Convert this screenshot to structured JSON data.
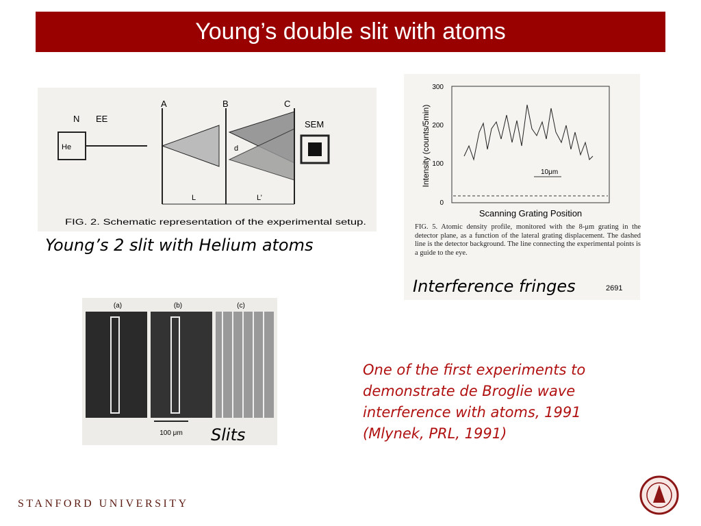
{
  "header": {
    "title": "Young’s double slit with atoms"
  },
  "setup_figure": {
    "labels": [
      "N",
      "EE",
      "A",
      "B",
      "C",
      "SEM",
      "He",
      "d",
      "L",
      "L’"
    ],
    "caption": "FIG. 2. Schematic representation of the experimental setup."
  },
  "setup_caption": "Young’s 2 slit with Helium atoms",
  "fringe_figure": {
    "y_label": "Intensity (counts/5min)",
    "y_ticks": [
      300,
      200,
      100,
      0
    ],
    "scale_label": "10μm",
    "x_label": "Scanning Grating Position",
    "caption": "FIG. 5. Atomic density profile, monitored with the 8-μm grating in the detector plane, as a function of the lateral grating displacement. The dashed line is the detector background. The line connecting the experimental points is a guide to the eye.",
    "page_number": "2691"
  },
  "fringe_caption": "Interference fringes",
  "slits_figure": {
    "panels": [
      "(a)",
      "(b)",
      "(c)"
    ],
    "scale_label": "100 μm"
  },
  "slits_caption": "Slits",
  "note": "One of the first experiments to demonstrate de Broglie wave interference with atoms, 1991 (Mlynek, PRL, 1991)",
  "footer": {
    "institution": "STANFORD UNIVERSITY"
  }
}
